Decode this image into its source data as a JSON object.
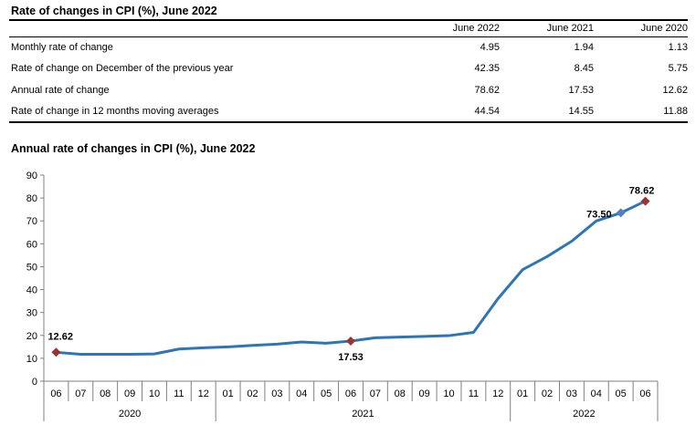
{
  "table": {
    "title": "Rate of changes in CPI (%), June 2022",
    "columns": [
      "June 2022",
      "June 2021",
      "June 2020"
    ],
    "rows": [
      {
        "label": "Monthly rate of change",
        "values": [
          "4.95",
          "1.94",
          "1.13"
        ]
      },
      {
        "label": "Rate of change on December of the previous year",
        "values": [
          "42.35",
          "8.45",
          "5.75"
        ]
      },
      {
        "label": "Annual rate of change",
        "values": [
          "78.62",
          "17.53",
          "12.62"
        ]
      },
      {
        "label": "Rate of change in 12 months moving averages",
        "values": [
          "44.54",
          "14.55",
          "11.88"
        ]
      }
    ]
  },
  "chart": {
    "title": "Annual rate of changes in CPI (%), June 2022"
  },
  "chart_data": {
    "type": "line",
    "title": "Annual rate of changes in CPI (%), June 2022",
    "ylabel": "",
    "xlabel": "",
    "ylim": [
      0,
      90
    ],
    "ytick_step": 10,
    "grid": false,
    "line_color": "#2E75B6",
    "axis_color": "#808080",
    "year_groups": [
      {
        "year": "2020",
        "months": [
          "06",
          "07",
          "08",
          "09",
          "10",
          "11",
          "12"
        ]
      },
      {
        "year": "2021",
        "months": [
          "01",
          "02",
          "03",
          "04",
          "05",
          "06",
          "07",
          "08",
          "09",
          "10",
          "11",
          "12"
        ]
      },
      {
        "year": "2022",
        "months": [
          "01",
          "02",
          "03",
          "04",
          "05",
          "06"
        ]
      }
    ],
    "values": [
      12.62,
      11.76,
      11.77,
      11.75,
      11.89,
      14.03,
      14.6,
      14.97,
      15.61,
      16.19,
      17.14,
      16.59,
      17.53,
      18.95,
      19.25,
      19.58,
      19.89,
      21.31,
      36.08,
      48.69,
      54.44,
      61.14,
      69.97,
      73.5,
      78.62
    ],
    "annotations": [
      {
        "index": 0,
        "label": "12.62",
        "marker_color": "#9E3132",
        "placement": "above-left"
      },
      {
        "index": 12,
        "label": "17.53",
        "marker_color": "#9E3132",
        "placement": "below"
      },
      {
        "index": 23,
        "label": "73.50",
        "marker_color": "#4F81BD",
        "placement": "left"
      },
      {
        "index": 24,
        "label": "78.62",
        "marker_color": "#9E3132",
        "placement": "above"
      }
    ]
  }
}
